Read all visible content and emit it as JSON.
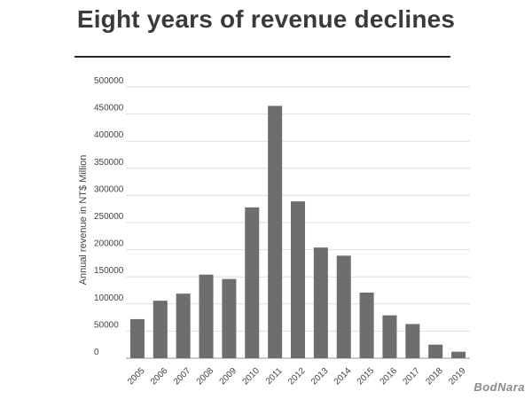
{
  "chart_data": {
    "type": "bar",
    "title": "Eight years of revenue declines",
    "ylabel": "Annual revenue in NT$ Million",
    "xlabel": "",
    "ylim": [
      0,
      500000
    ],
    "yticks": [
      0,
      50000,
      100000,
      150000,
      200000,
      250000,
      300000,
      350000,
      400000,
      450000,
      500000
    ],
    "grid": true,
    "bar_color": "#6e6e6e",
    "grid_color": "#dedede",
    "categories": [
      "2005",
      "2006",
      "2007",
      "2008",
      "2009",
      "2010",
      "2011",
      "2012",
      "2013",
      "2014",
      "2015",
      "2016",
      "2017",
      "2018",
      "2019"
    ],
    "values": [
      72000,
      106000,
      119000,
      154000,
      146000,
      278000,
      465000,
      289000,
      204000,
      189000,
      121000,
      79000,
      63000,
      25000,
      12000
    ]
  },
  "watermark": "BodNara"
}
